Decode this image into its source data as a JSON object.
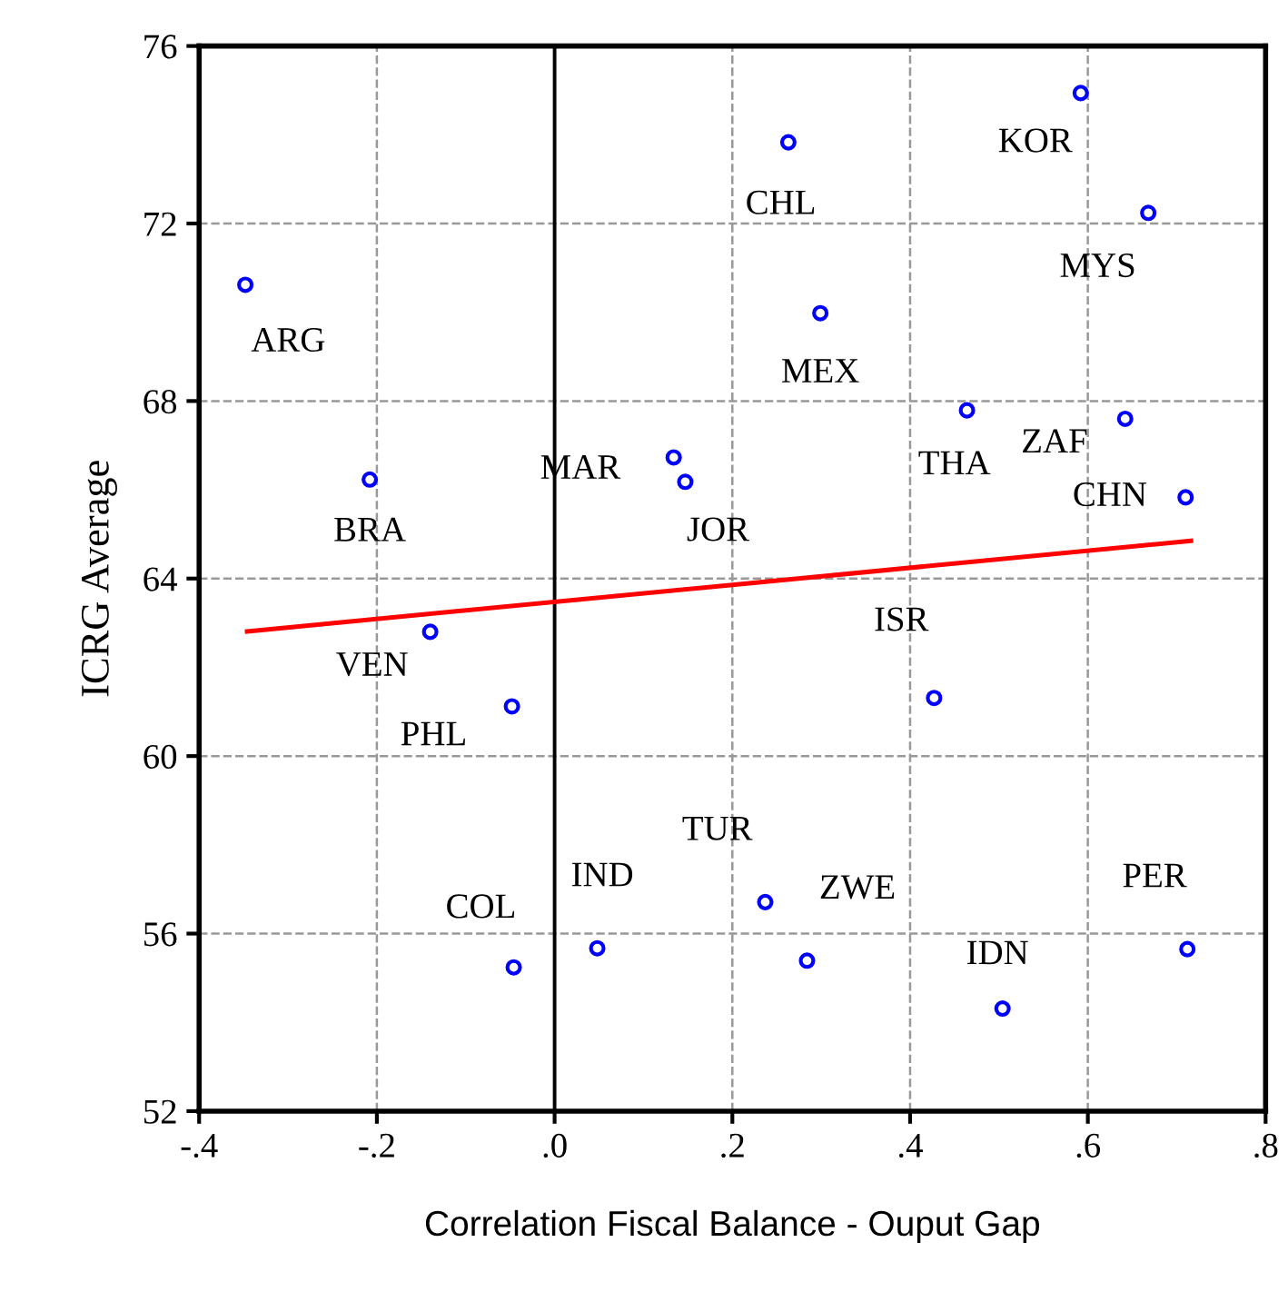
{
  "chart_data": {
    "type": "scatter",
    "xlabel": "Correlation Fiscal Balance - Ouput Gap",
    "ylabel": "ICRG Average",
    "xlim": [
      -0.4,
      0.8
    ],
    "ylim": [
      52,
      76
    ],
    "xticks": [
      {
        "value": -0.4,
        "label": "-.4"
      },
      {
        "value": -0.2,
        "label": "-.2"
      },
      {
        "value": 0,
        "label": ".0"
      },
      {
        "value": 0.2,
        "label": ".2"
      },
      {
        "value": 0.4,
        "label": ".4"
      },
      {
        "value": 0.6,
        "label": ".6"
      },
      {
        "value": 0.8,
        "label": ".8"
      }
    ],
    "yticks": [
      52,
      56,
      60,
      64,
      68,
      72,
      76
    ],
    "grid": true,
    "marker": "circle",
    "legend": false,
    "series": [
      {
        "color": "#0000ff",
        "x": [
          -0.348,
          -0.208,
          0.134,
          0.147,
          0.263,
          0.592,
          0.668,
          0.299,
          0.464,
          0.642,
          0.71,
          -0.14,
          -0.048,
          -0.046,
          0.048,
          0.427,
          0.237,
          0.284,
          0.504,
          0.712
        ],
        "values": [
          70.62,
          66.23,
          66.73,
          66.18,
          73.83,
          74.94,
          72.24,
          69.98,
          67.79,
          67.6,
          65.83,
          62.8,
          61.12,
          55.24,
          55.67,
          61.31,
          56.71,
          55.39,
          54.31,
          55.65
        ]
      },
      {
        "type": "line",
        "marker": "none",
        "color": "#ff0000",
        "x": [
          -0.346,
          0.716
        ],
        "values": [
          62.81,
          64.85
        ]
      }
    ],
    "ref_lines": [
      {
        "axis": "x",
        "value": 0,
        "color": "#000000",
        "line_style": "solid"
      }
    ],
    "annotations": [
      {
        "text": "ARG",
        "x": -0.348,
        "y": 70.62
      },
      {
        "text": "BRA",
        "x": -0.208,
        "y": 66.23
      },
      {
        "text": "MAR",
        "x": 0.134,
        "y": 66.73
      },
      {
        "text": "JOR",
        "x": 0.147,
        "y": 66.18
      },
      {
        "text": "CHL",
        "x": 0.263,
        "y": 73.83
      },
      {
        "text": "KOR",
        "x": 0.592,
        "y": 74.94
      },
      {
        "text": "MYS",
        "x": 0.668,
        "y": 72.24
      },
      {
        "text": "MEX",
        "x": 0.299,
        "y": 69.98
      },
      {
        "text": "THA",
        "x": 0.464,
        "y": 67.79
      },
      {
        "text": "ZAF",
        "x": 0.642,
        "y": 67.6
      },
      {
        "text": "CHN",
        "x": 0.71,
        "y": 65.83
      },
      {
        "text": "VEN",
        "x": -0.14,
        "y": 62.8
      },
      {
        "text": "PHL",
        "x": -0.048,
        "y": 61.12
      },
      {
        "text": "COL",
        "x": -0.046,
        "y": 55.24
      },
      {
        "text": "IND",
        "x": 0.048,
        "y": 55.67
      },
      {
        "text": "ISR",
        "x": 0.427,
        "y": 61.31
      },
      {
        "text": "TUR",
        "x": 0.237,
        "y": 56.71
      },
      {
        "text": "ZWE",
        "x": 0.284,
        "y": 55.39
      },
      {
        "text": "IDN",
        "x": 0.504,
        "y": 54.31
      },
      {
        "text": "PER",
        "x": 0.712,
        "y": 55.65
      }
    ]
  }
}
